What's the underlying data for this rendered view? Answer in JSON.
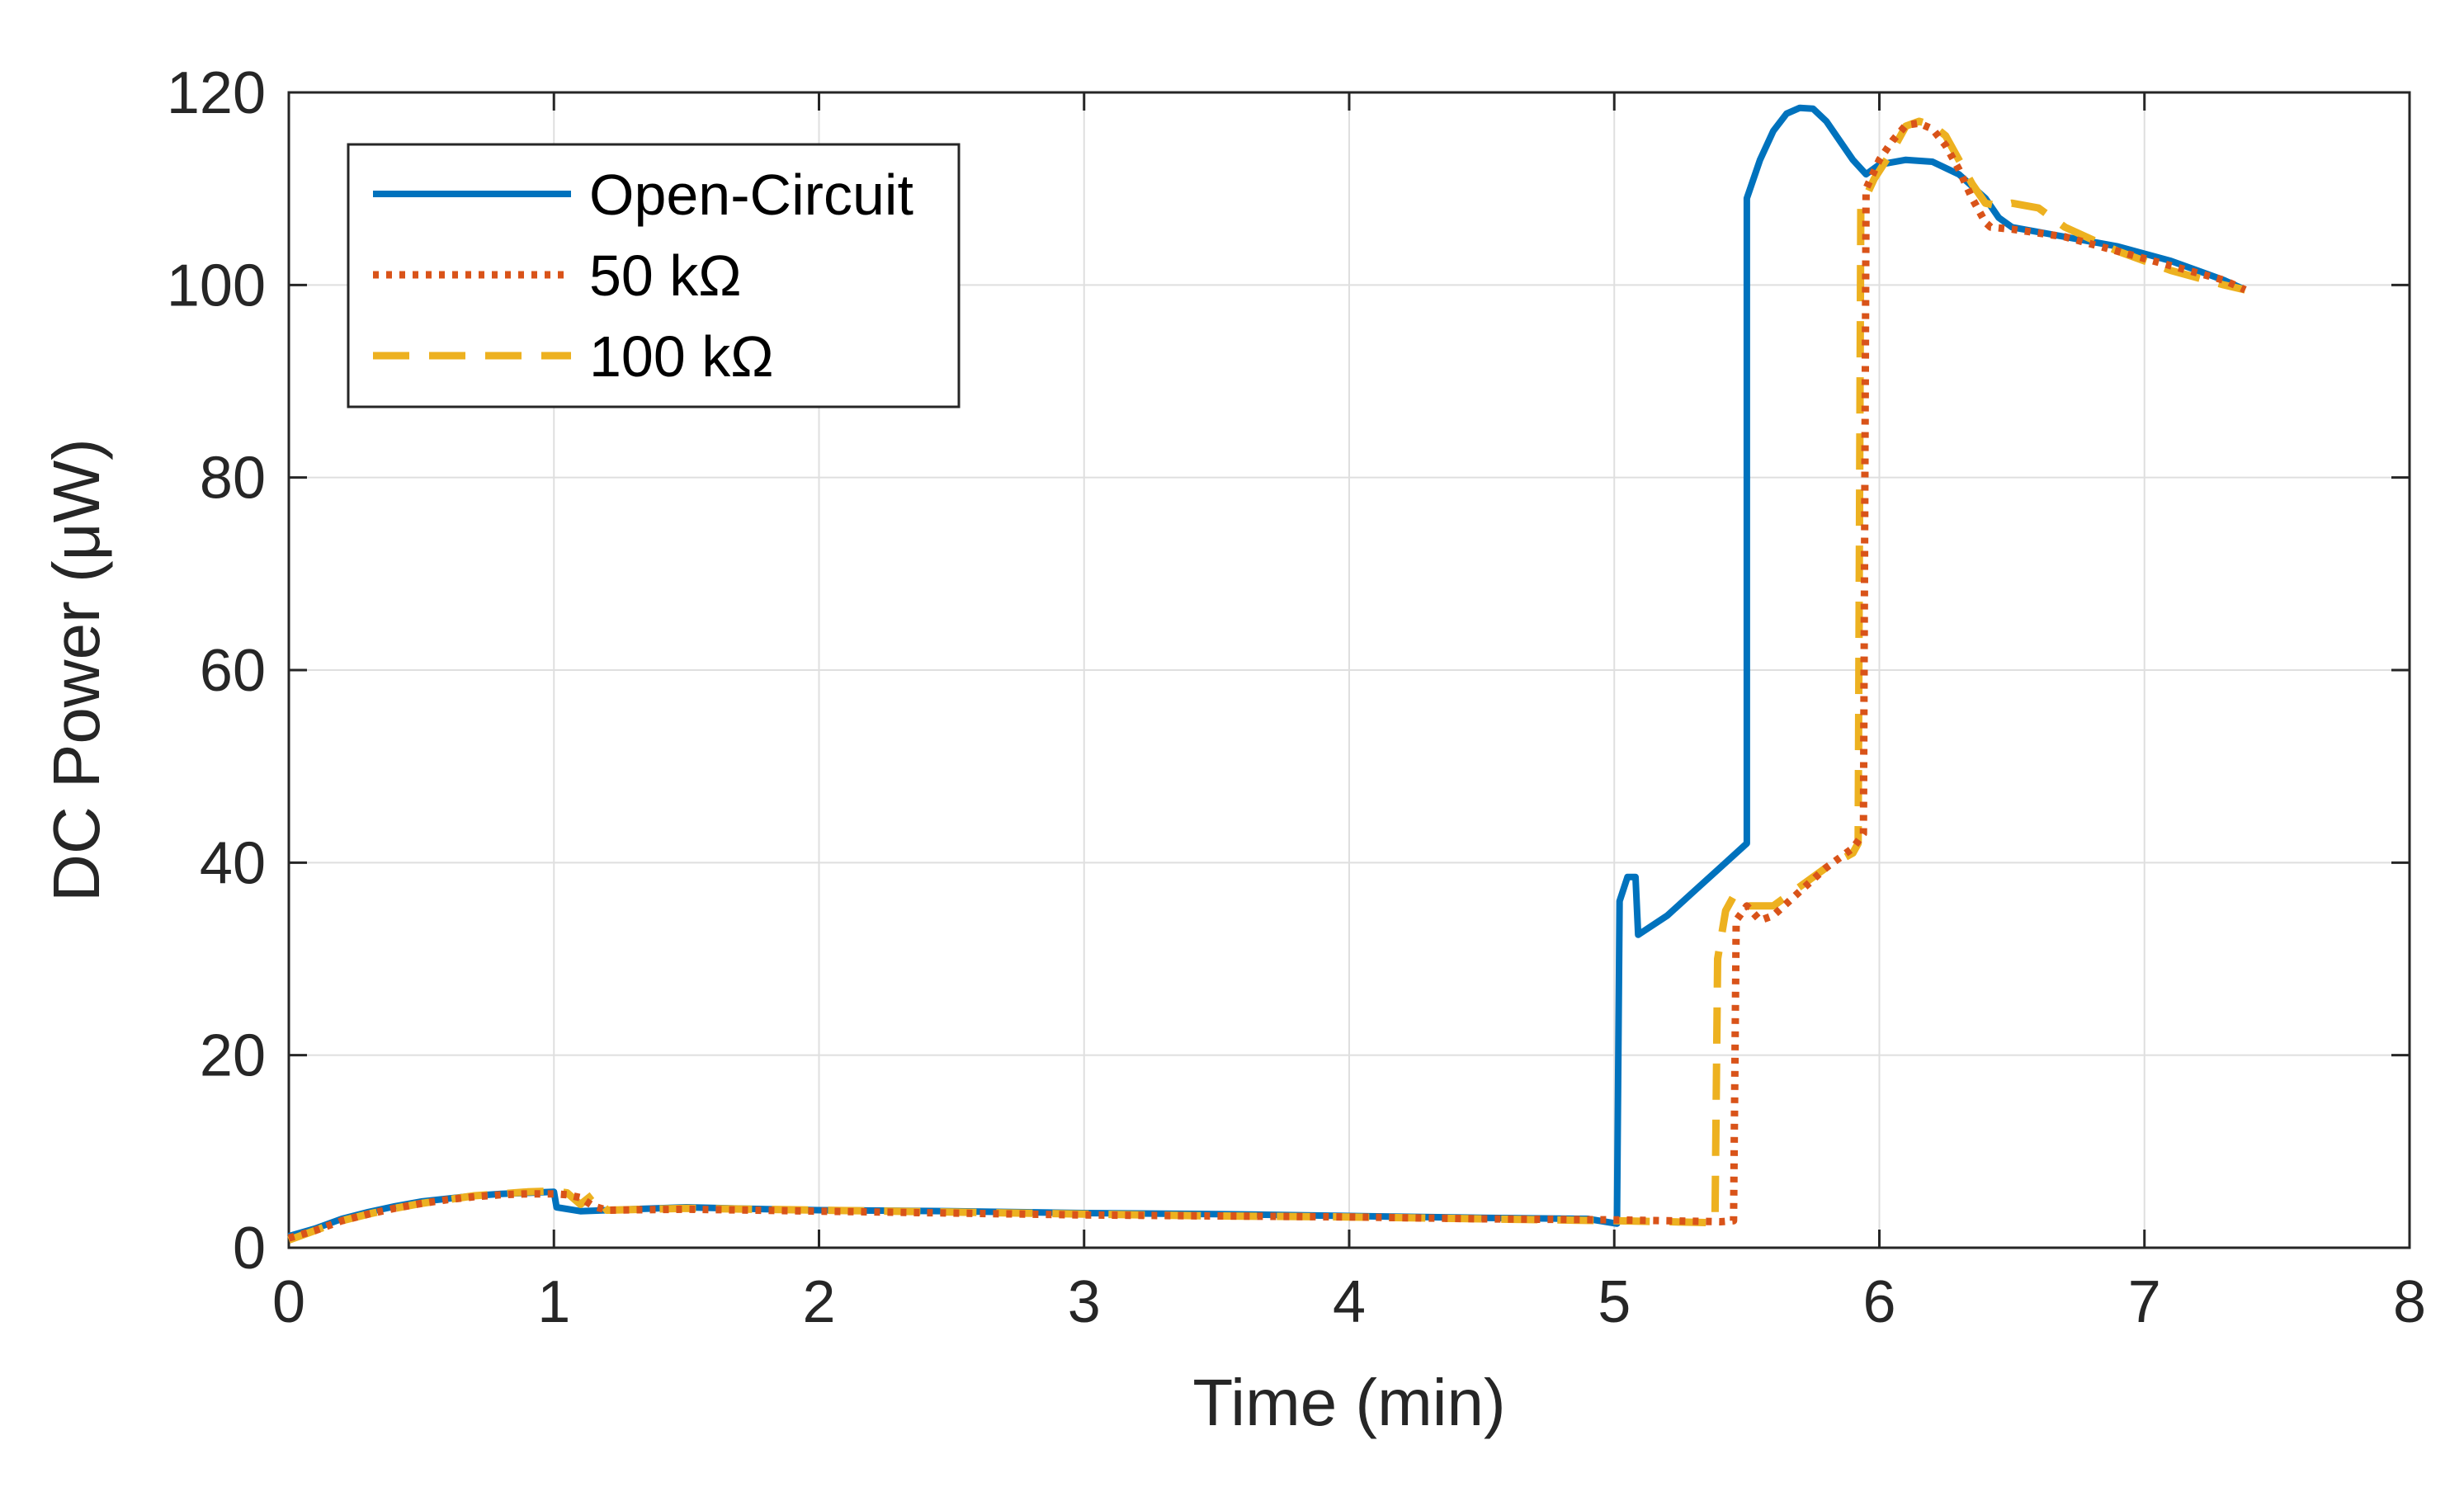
{
  "chart_data": {
    "type": "line",
    "title": "",
    "xlabel": "Time (min)",
    "ylabel": "DC Power (μW)",
    "xlim": [
      0,
      8
    ],
    "ylim": [
      0,
      120
    ],
    "xticks": [
      0,
      1,
      2,
      3,
      4,
      5,
      6,
      7,
      8
    ],
    "yticks": [
      0,
      20,
      40,
      60,
      80,
      100,
      120
    ],
    "grid": true,
    "legend_position": "top-left",
    "series": [
      {
        "name": "Open-Circuit",
        "color": "#0072BD",
        "style": "solid",
        "x": [
          0,
          0.1,
          0.2,
          0.3,
          0.4,
          0.5,
          0.6,
          0.7,
          0.8,
          0.9,
          1.0,
          1.01,
          1.1,
          1.3,
          1.5,
          1.8,
          2.0,
          2.5,
          3.0,
          3.5,
          4.0,
          4.5,
          4.9,
          5.01,
          5.02,
          5.05,
          5.08,
          5.09,
          5.2,
          5.3,
          5.4,
          5.5,
          5.5,
          5.55,
          5.6,
          5.65,
          5.7,
          5.75,
          5.8,
          5.85,
          5.9,
          5.95,
          6.0,
          6.1,
          6.2,
          6.3,
          6.4,
          6.45,
          6.5,
          6.7,
          6.9,
          7.1,
          7.3,
          7.38
        ],
        "y": [
          1.2,
          2,
          3,
          3.7,
          4.3,
          4.8,
          5.1,
          5.4,
          5.6,
          5.7,
          5.8,
          4.2,
          3.8,
          4.0,
          4.2,
          4.0,
          3.9,
          3.8,
          3.6,
          3.5,
          3.3,
          3.1,
          3.0,
          2.5,
          36,
          38.5,
          38.5,
          32.5,
          34.5,
          37,
          39.5,
          42,
          109,
          113,
          116,
          117.8,
          118.4,
          118.3,
          117,
          115,
          113,
          111.5,
          112.5,
          113,
          112.8,
          111.5,
          109,
          107,
          106,
          105,
          104,
          102.5,
          100.5,
          99.5
        ]
      },
      {
        "name": "50 kΩ",
        "color": "#D95319",
        "style": "dotted",
        "x": [
          0,
          0.1,
          0.2,
          0.3,
          0.4,
          0.5,
          0.6,
          0.7,
          0.8,
          0.9,
          1.0,
          1.05,
          1.1,
          1.15,
          1.2,
          1.5,
          2.0,
          2.5,
          3.0,
          3.5,
          4.0,
          4.5,
          5.0,
          5.2,
          5.4,
          5.45,
          5.46,
          5.5,
          5.55,
          5.6,
          5.7,
          5.8,
          5.9,
          5.94,
          5.95,
          6.0,
          6.05,
          6.1,
          6.15,
          6.2,
          6.25,
          6.3,
          6.35,
          6.4,
          6.42,
          6.5,
          6.7,
          6.9,
          7.1,
          7.3,
          7.38
        ],
        "y": [
          1.0,
          1.8,
          2.8,
          3.5,
          4.1,
          4.6,
          5.0,
          5.3,
          5.5,
          5.6,
          5.6,
          5.5,
          5.2,
          4.3,
          3.9,
          4.0,
          3.8,
          3.6,
          3.4,
          3.3,
          3.2,
          3.0,
          2.9,
          2.8,
          2.7,
          2.8,
          34,
          35.5,
          34,
          34.5,
          37,
          39.5,
          41.5,
          43,
          110,
          113,
          115,
          116.6,
          116.8,
          116.2,
          114.5,
          112,
          109,
          106.5,
          106,
          105.8,
          105,
          103.5,
          102,
          100.5,
          99.5
        ]
      },
      {
        "name": "100 kΩ",
        "color": "#EDB120",
        "style": "dashed",
        "x": [
          0,
          0.1,
          0.2,
          0.3,
          0.4,
          0.5,
          0.6,
          0.7,
          0.8,
          0.9,
          1.0,
          1.05,
          1.1,
          1.15,
          1.2,
          1.5,
          2.0,
          2.5,
          3.0,
          3.5,
          4.0,
          4.5,
          5.0,
          5.2,
          5.38,
          5.39,
          5.42,
          5.45,
          5.5,
          5.6,
          5.7,
          5.8,
          5.9,
          5.92,
          5.93,
          5.98,
          6.05,
          6.1,
          6.15,
          6.2,
          6.25,
          6.3,
          6.35,
          6.4,
          6.45,
          6.5,
          6.6,
          6.7,
          6.9,
          7.1,
          7.3,
          7.38
        ],
        "y": [
          0.8,
          1.8,
          2.8,
          3.5,
          4.1,
          4.6,
          5.0,
          5.4,
          5.6,
          5.8,
          5.9,
          5.7,
          4.5,
          5.6,
          3.9,
          4.1,
          3.9,
          3.7,
          3.5,
          3.3,
          3.2,
          3.0,
          2.8,
          2.7,
          2.6,
          30,
          35,
          36.5,
          35.5,
          35.5,
          37.5,
          39.5,
          41,
          42,
          108,
          111,
          114,
          116.5,
          117,
          116.6,
          115.5,
          113,
          110.5,
          108.5,
          108.2,
          108.5,
          108,
          106,
          103.5,
          101.5,
          100,
          99.5
        ]
      }
    ]
  }
}
